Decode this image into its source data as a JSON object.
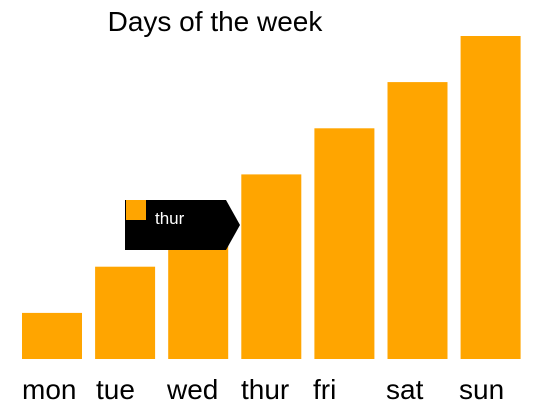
{
  "chart_data": {
    "type": "bar",
    "title": "Days of the week",
    "categories": [
      "mon",
      "tue",
      "wed",
      "thur",
      "fri",
      "sat",
      "sun"
    ],
    "values": [
      1,
      2,
      3,
      4,
      5,
      6,
      7
    ],
    "ylim": [
      0,
      7
    ],
    "grid": false,
    "legend": "none",
    "bar_color": "#FFA500"
  },
  "tooltip": {
    "label": "thur",
    "swatch_color": "#FFA500",
    "background": "#000000"
  }
}
